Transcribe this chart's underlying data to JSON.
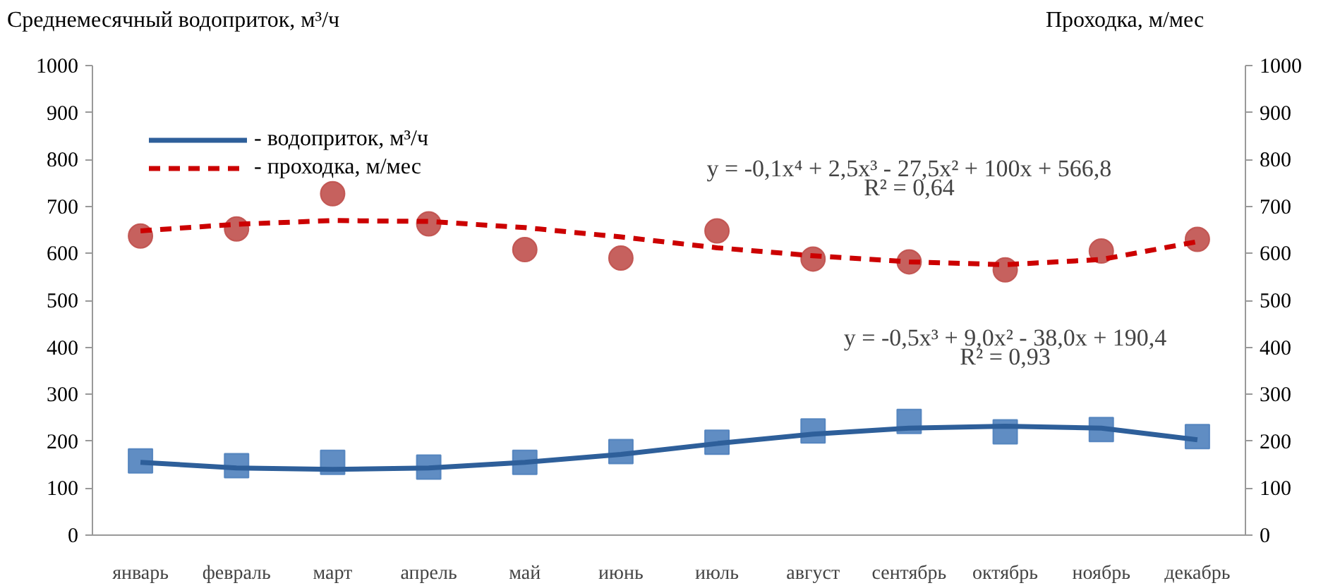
{
  "chart_data": {
    "type": "scatter",
    "ylabel": "Среднемесячный водоприток, м³/ч",
    "y2label": "Проходка, м/мес",
    "categories": [
      "январь",
      "февраль",
      "март",
      "апрель",
      "май",
      "июнь",
      "июль",
      "август",
      "сентябрь",
      "октябрь",
      "ноябрь",
      "декабрь"
    ],
    "series": [
      {
        "color": "#4f81bd",
        "marker": "square",
        "values": [
          158,
          148,
          155,
          145,
          155,
          178,
          198,
          222,
          242,
          220,
          225,
          210
        ]
      },
      {
        "color": "#c0504d",
        "marker": "circle",
        "values": [
          637,
          652,
          727,
          663,
          608,
          590,
          648,
          588,
          582,
          565,
          605,
          630
        ]
      },
      {
        "type": "line",
        "name": "- водоприток, м³/ч",
        "color": "#2e5f9a",
        "line_style": "solid",
        "values": [
          155,
          143,
          140,
          143,
          155,
          172,
          195,
          215,
          228,
          232,
          228,
          203
        ]
      },
      {
        "type": "line",
        "name": "- проходка, м/мес",
        "color": "#cc0000",
        "line_style": "dashed",
        "values": [
          648,
          662,
          670,
          668,
          655,
          635,
          612,
          595,
          582,
          576,
          587,
          625
        ]
      }
    ],
    "annotations": [
      "y = -0,1x⁴ + 2,5x³ - 27,5x² + 100x + 566,8",
      "R² = 0,64",
      "y = -0,5x³ + 9,0x² - 38,0x + 190,4",
      "R² = 0,93"
    ],
    "ylim": [
      0,
      1000
    ],
    "yticks": [
      0,
      100,
      200,
      300,
      400,
      500,
      600,
      700,
      800,
      900,
      1000
    ],
    "y2lim": [
      0,
      1000
    ],
    "y2ticks": [
      0,
      100,
      200,
      300,
      400,
      500,
      600,
      700,
      800,
      900,
      1000
    ],
    "grid": false,
    "legend": "top left"
  }
}
